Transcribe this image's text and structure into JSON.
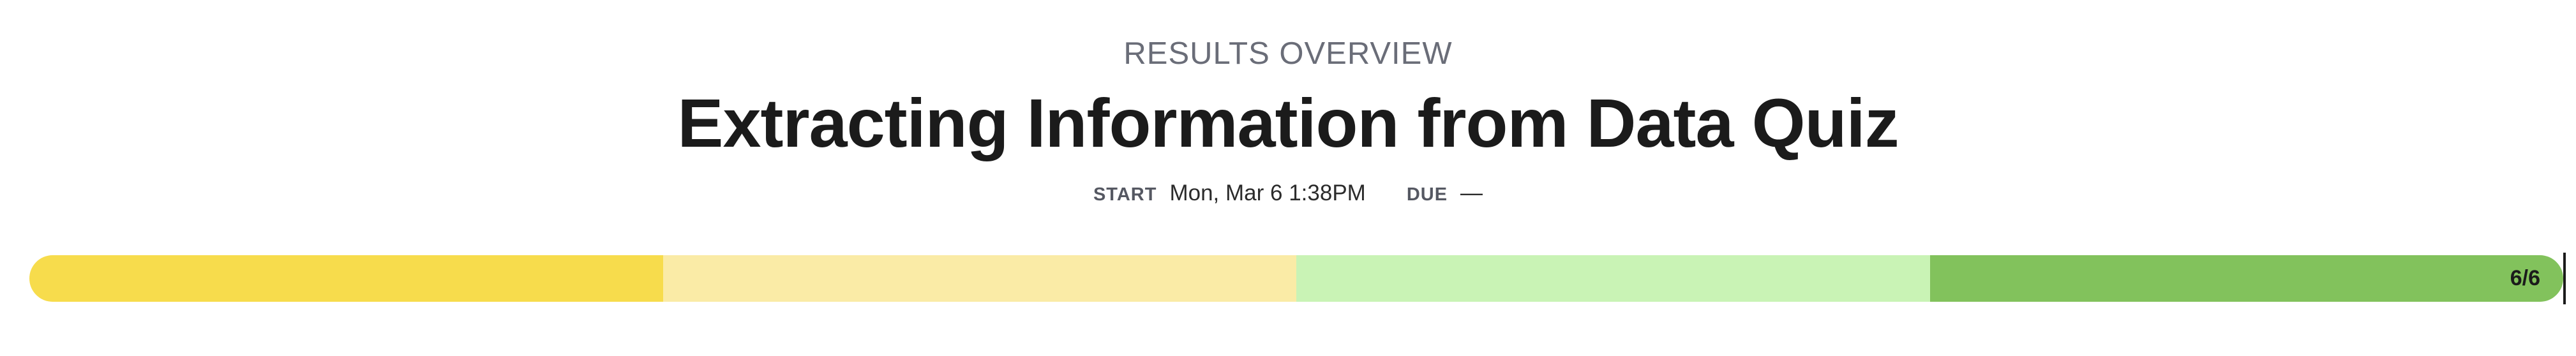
{
  "header": {
    "overline": "RESULTS OVERVIEW",
    "title": "Extracting Information from Data Quiz"
  },
  "meta": {
    "start_label": "START",
    "start_value": "Mon, Mar 6 1:38PM",
    "due_label": "DUE",
    "due_value": "—"
  },
  "progress": {
    "label": "6/6",
    "completed": 6,
    "total": 6,
    "segments": [
      {
        "color": "#f7dc4c"
      },
      {
        "color": "#faeba6"
      },
      {
        "color": "#c9f3b5"
      },
      {
        "color": "#82c25c"
      }
    ]
  }
}
